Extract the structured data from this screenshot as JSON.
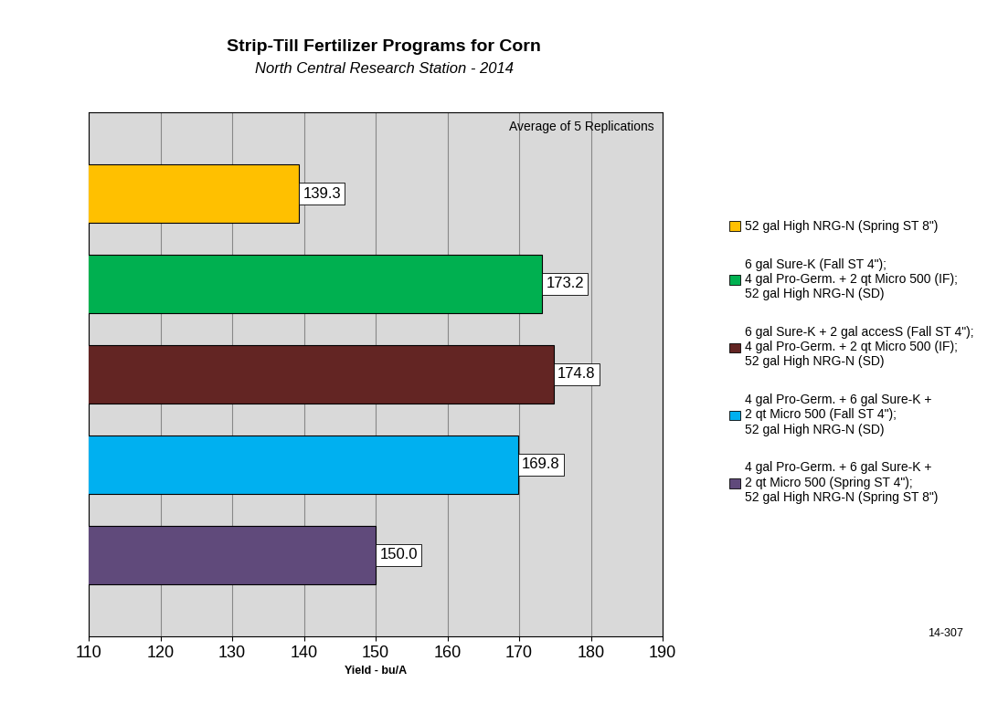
{
  "chart_data": {
    "type": "bar",
    "title": "Strip-Till Fertilizer Programs for Corn",
    "subtitle": "North Central Research Station - 2014",
    "orientation": "horizontal",
    "categories": [
      "52 gal High NRG-N (Spring ST 8\")",
      "6 gal Sure-K (Fall ST 4\");\n4 gal Pro-Germ. + 2 qt Micro 500 (IF);\n52 gal High NRG-N (SD)",
      "6 gal Sure-K + 2 gal accesS (Fall ST 4\");\n4 gal Pro-Germ. + 2 qt Micro 500 (IF);\n52 gal High NRG-N (SD)",
      "4 gal Pro-Germ. + 6 gal Sure-K +\n2 qt Micro 500 (Fall ST 4\");\n52 gal High NRG-N (SD)",
      "4 gal Pro-Germ. + 6 gal Sure-K +\n2 qt Micro 500 (Spring ST 4\");\n52 gal High NRG-N (Spring ST 8\")"
    ],
    "values": [
      139.3,
      173.2,
      174.8,
      169.8,
      150.0
    ],
    "value_labels": [
      "139.3",
      "173.2",
      "174.8",
      "169.8",
      "150.0"
    ],
    "colors": [
      "#FFC000",
      "#00B050",
      "#632523",
      "#00B0F0",
      "#604A7B"
    ],
    "xlabel": "Yield - bu/A",
    "xlim": [
      110,
      190
    ],
    "xticks": [
      110,
      120,
      130,
      140,
      150,
      160,
      170,
      180,
      190
    ],
    "grid": true,
    "data_labels": true,
    "tick_labels": "x",
    "legend": "right",
    "annotations": [
      "Average of 5 Replications",
      "14-307"
    ]
  }
}
